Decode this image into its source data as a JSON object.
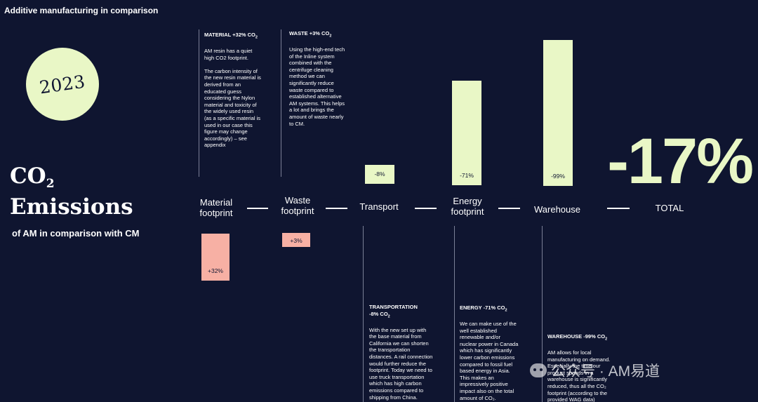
{
  "header": {
    "title": "Additive manufacturing in comparison"
  },
  "badge": {
    "year": "2023"
  },
  "heading": {
    "line1": "CO",
    "line1_sub": "2",
    "line2": "Emissions",
    "subtitle": "of AM in comparison with CM"
  },
  "colors": {
    "background": "#0f1530",
    "reduction": "#e9f7c6",
    "increase": "#f7b0a4",
    "text": "#ffffff"
  },
  "chart_data": {
    "type": "bar",
    "title": "",
    "categories": [
      "Material\nfootprint",
      "Waste\nfootprint",
      "Transport",
      "Energy\nfootprint",
      "Warehouse",
      "TOTAL"
    ],
    "values": [
      32,
      3,
      -8,
      -71,
      -99,
      -17
    ],
    "labels": [
      "+32%",
      "+3%",
      "-8%",
      "-71%",
      "-99%",
      "-17%"
    ],
    "unit": "%"
  },
  "notes": {
    "material": {
      "heading": "MATERIAL +32% CO",
      "heading_sub": "2",
      "body": "AM resin has a quiet\nhigh CO2 footprint.\n\nThe carbon intensity of\nthe new resin material is\nderived from an\neducated guess\nconsidering the Nylon\nmaterial and toxicity of\nthe widely used resin\n(as a specific material is\nused in our case this\nfigure may change\naccordingly) – see\nappendix"
    },
    "waste": {
      "heading": "WASTE +3% CO",
      "heading_sub": "2",
      "body": "Using the high-end tech\nof the Inline system\ncombined with the\ncentrifuge cleaning\nmethod we can\nsignificantly reduce\nwaste compared to\nestablished alternative\nAM systems. This helps\na lot and brings the\namount of waste nearly\nto CM."
    },
    "transport": {
      "heading": "TRANSPORTATION\n-8% CO",
      "heading_sub": "2",
      "body": "With the new set up with\nthe base material from\nCalifornia we can shorten\nthe transportation\ndistances. A rail connection\nwould further reduce the\nfootprint. Today we need to\nuse truck transportation\nwhich has high carbon\nemissions compared to\nshipping from China."
    },
    "energy": {
      "heading": "ENERGY -71% CO",
      "heading_sub": "2",
      "body": "We can make use of the\nwell established\nrenewable and/or\nnuclear power in Canada\nwhich has significantly\nlower carbon emissions\ncompared to fossil fuel\nbased energy in Asia.\nThis makes an\nimpressively positive\nimpact also on the total\namount of CO₂."
    },
    "warehouse": {
      "heading": "WAREHOUSE -99% CO",
      "heading_sub": "2",
      "body": "AM allows for local\nmanufacturing on demand.\nEspecially the time our\nproduct spends in a\nwarehouse is significantly\nreduced, thus all the CO₂\nfootprint (according to the\nprovided WAG data)"
    }
  },
  "watermark": {
    "text": "公众号 · AM易道"
  }
}
